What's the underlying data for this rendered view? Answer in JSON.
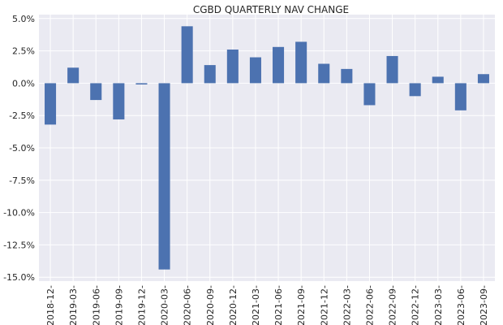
{
  "chart_data": {
    "type": "bar",
    "title": "CGBD QUARTERLY NAV CHANGE",
    "xlabel": "",
    "ylabel": "",
    "categories": [
      "2018-12-",
      "2019-03-",
      "2019-06-",
      "2019-09-",
      "2019-12-",
      "2020-03-",
      "2020-06-",
      "2020-09-",
      "2020-12-",
      "2021-03-",
      "2021-06-",
      "2021-09-",
      "2021-12-",
      "2022-03-",
      "2022-06-",
      "2022-09-",
      "2022-12-",
      "2023-03-",
      "2023-06-",
      "2023-09-"
    ],
    "values": [
      -3.2,
      1.2,
      -1.3,
      -2.8,
      -0.1,
      -14.4,
      4.4,
      1.4,
      2.6,
      2.0,
      2.8,
      3.2,
      1.5,
      1.1,
      -1.7,
      2.1,
      -1.0,
      0.5,
      -2.1,
      0.7
    ],
    "ylim": [
      -15.3,
      5.3
    ],
    "yticks": [
      5.0,
      2.5,
      0.0,
      -2.5,
      -5.0,
      -7.5,
      -10.0,
      -12.5,
      -15.0
    ],
    "ytick_labels": [
      "5.0%",
      "2.5%",
      "0.0%",
      "-2.5%",
      "-5.0%",
      "-7.5%",
      "-10.0%",
      "-12.5%",
      "-15.0%"
    ],
    "grid": true,
    "legend": "none",
    "colors": {
      "bar": "#4c72b0",
      "plot_bg": "#eaeaf2",
      "grid": "#ffffff",
      "text": "#262626"
    }
  }
}
